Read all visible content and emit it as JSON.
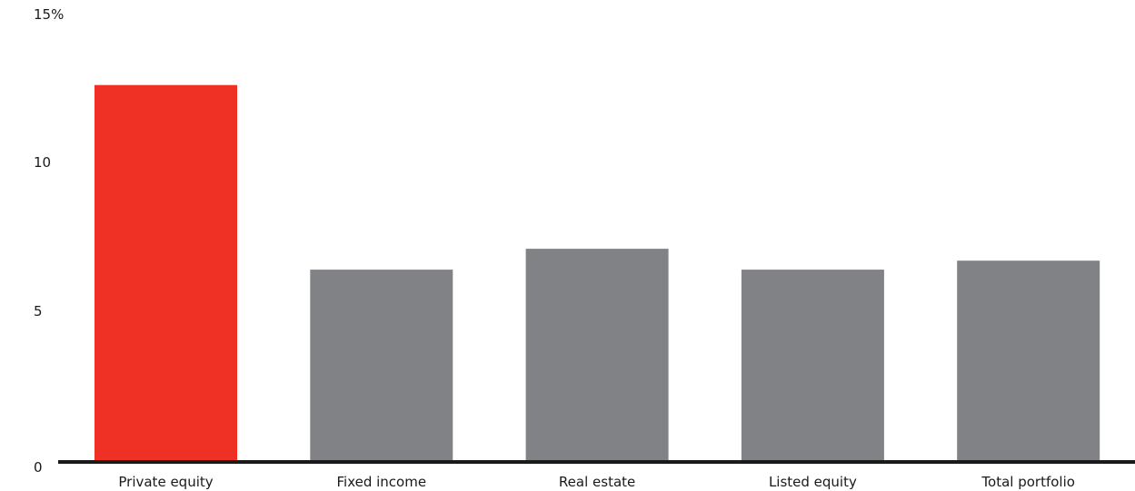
{
  "chart_data": {
    "type": "bar",
    "categories": [
      "Private equity",
      "Fixed income",
      "Real estate",
      "Listed equity",
      "Total portfolio"
    ],
    "values": [
      12.6,
      6.4,
      7.1,
      6.4,
      6.7
    ],
    "y_ticks": [
      "0",
      "5",
      "10",
      "15%"
    ],
    "y_tick_values": [
      0,
      5,
      10,
      15
    ],
    "ylim": [
      0,
      15
    ],
    "grid": false,
    "colors": {
      "highlight": "#ee3124",
      "default": "#818285",
      "axis": "#1a1a1a"
    },
    "highlight_index": 0
  }
}
